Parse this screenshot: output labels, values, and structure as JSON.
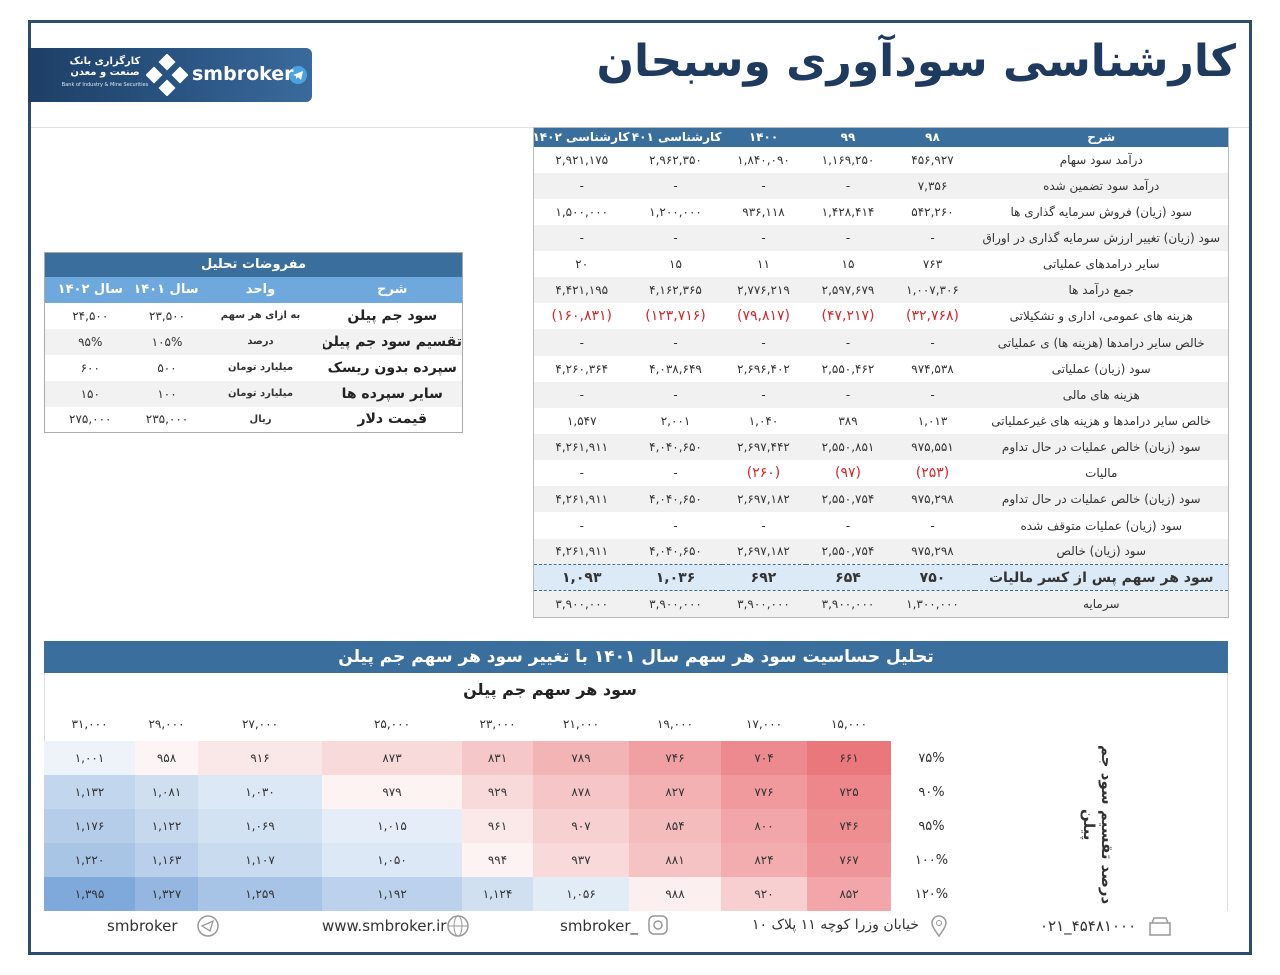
{
  "header": {
    "title": "کارشناسی سودآوری وسبحان",
    "brand": "smbroker",
    "logo_text": "کارگزاری بانک صنعت و معدن",
    "logo_subtext": "Bank of Industry & Mine Securities"
  },
  "income_table": {
    "columns": [
      "شرح",
      "۹۸",
      "۹۹",
      "۱۴۰۰",
      "کارشناسی ۱۴۰۱",
      "کارشناسی ۱۴۰۲"
    ],
    "rows": [
      [
        "درآمد سود سهام",
        "۴۵۶,۹۲۷",
        "۱,۱۶۹,۲۵۰",
        "۱,۸۴۰,۰۹۰",
        "۲,۹۶۲,۳۵۰",
        "۲,۹۲۱,۱۷۵"
      ],
      [
        "درآمد سود تضمین شده",
        "۷,۳۵۶",
        "-",
        "-",
        "-",
        "-"
      ],
      [
        "سود (زیان) فروش سرمایه گذاری ها",
        "۵۴۲,۲۶۰",
        "۱,۴۲۸,۴۱۴",
        "۹۳۶,۱۱۸",
        "۱,۲۰۰,۰۰۰",
        "۱,۵۰۰,۰۰۰"
      ],
      [
        "سود (زیان) تغییر ارزش سرمایه گذاری در اوراق",
        "-",
        "-",
        "-",
        "-",
        "-"
      ],
      [
        "سایر درامدهای عملیاتی",
        "۷۶۳",
        "۱۵",
        "۱۱",
        "۱۵",
        "۲۰"
      ],
      [
        "جمع درآمد ها",
        "۱,۰۰۷,۳۰۶",
        "۲,۵۹۷,۶۷۹",
        "۲,۷۷۶,۲۱۹",
        "۴,۱۶۲,۳۶۵",
        "۴,۴۲۱,۱۹۵"
      ],
      [
        "هزینه های عمومی، اداری و تشکیلاتی",
        "(۳۲,۷۶۸)",
        "(۴۷,۲۱۷)",
        "(۷۹,۸۱۷)",
        "(۱۲۳,۷۱۶)",
        "(۱۶۰,۸۳۱)"
      ],
      [
        "خالص سایر درامدها (هزینه ها) ی عملیاتی",
        "-",
        "-",
        "-",
        "-",
        "-"
      ],
      [
        "سود (زیان) عملیاتی",
        "۹۷۴,۵۳۸",
        "۲,۵۵۰,۴۶۲",
        "۲,۶۹۶,۴۰۲",
        "۴,۰۳۸,۶۴۹",
        "۴,۲۶۰,۳۶۴"
      ],
      [
        "هزینه های مالی",
        "-",
        "-",
        "-",
        "-",
        "-"
      ],
      [
        "خالص سایر درامدها و هزینه های غیرعملیاتی",
        "۱,۰۱۳",
        "۳۸۹",
        "۱,۰۴۰",
        "۲,۰۰۱",
        "۱,۵۴۷"
      ],
      [
        "سود (زیان) خالص عملیات در حال تداوم",
        "۹۷۵,۵۵۱",
        "۲,۵۵۰,۸۵۱",
        "۲,۶۹۷,۴۴۲",
        "۴,۰۴۰,۶۵۰",
        "۴,۲۶۱,۹۱۱"
      ],
      [
        "مالیات",
        "(۲۵۳)",
        "(۹۷)",
        "(۲۶۰)",
        "-",
        "-"
      ],
      [
        "سود (زیان) خالص عملیات در حال تداوم",
        "۹۷۵,۲۹۸",
        "۲,۵۵۰,۷۵۴",
        "۲,۶۹۷,۱۸۲",
        "۴,۰۴۰,۶۵۰",
        "۴,۲۶۱,۹۱۱"
      ],
      [
        "سود (زیان) عملیات متوقف شده",
        "-",
        "-",
        "-",
        "-",
        "-"
      ],
      [
        "سود (زیان) خالص",
        "۹۷۵,۲۹۸",
        "۲,۵۵۰,۷۵۴",
        "۲,۶۹۷,۱۸۲",
        "۴,۰۴۰,۶۵۰",
        "۴,۲۶۱,۹۱۱"
      ],
      [
        "سود هر سهم پس از کسر مالیات",
        "۷۵۰",
        "۶۵۴",
        "۶۹۲",
        "۱,۰۳۶",
        "۱,۰۹۳"
      ],
      [
        "سرمایه",
        "۱,۳۰۰,۰۰۰",
        "۳,۹۰۰,۰۰۰",
        "۳,۹۰۰,۰۰۰",
        "۳,۹۰۰,۰۰۰",
        "۳,۹۰۰,۰۰۰"
      ]
    ]
  },
  "assumptions": {
    "title": "مفروضات تحلیل",
    "columns": [
      "شرح",
      "واحد",
      "سال ۱۴۰۱",
      "سال ۱۴۰۲"
    ],
    "rows": [
      [
        "سود جم پیلن",
        "به ازای هر سهم",
        "۲۳,۵۰۰",
        "۲۴,۵۰۰"
      ],
      [
        "تقسیم سود جم پیلن",
        "درصد",
        "۱۰۵%",
        "۹۵%"
      ],
      [
        "سپرده بدون ریسک",
        "میلیارد تومان",
        "۵۰۰",
        "۶۰۰"
      ],
      [
        "سایر سپرده ها",
        "میلیارد تومان",
        "۱۰۰",
        "۱۵۰"
      ],
      [
        "قیمت دلار",
        "ریال",
        "۲۳۵,۰۰۰",
        "۲۷۵,۰۰۰"
      ]
    ]
  },
  "sensitivity": {
    "title": "تحلیل حساسیت سود هر سهم سال ۱۴۰۱ با تغییر سود هر سهم جم پیلن",
    "subtitle": "سود هر سهم جم پیلن",
    "row_axis_label": "درصد تقسیم سود جم پیلن",
    "columns": [
      "۱۵,۰۰۰",
      "۱۷,۰۰۰",
      "۱۹,۰۰۰",
      "۲۱,۰۰۰",
      "۲۳,۰۰۰",
      "۲۵,۰۰۰",
      "۲۷,۰۰۰",
      "۲۹,۰۰۰",
      "۳۱,۰۰۰"
    ],
    "row_labels": [
      "۷۵%",
      "۹۰%",
      "۹۵%",
      "۱۰۰%",
      "۱۲۰%"
    ],
    "rows": [
      [
        "۶۶۱",
        "۷۰۴",
        "۷۴۶",
        "۷۸۹",
        "۸۳۱",
        "۸۷۳",
        "۹۱۶",
        "۹۵۸",
        "۱,۰۰۱"
      ],
      [
        "۷۲۵",
        "۷۷۶",
        "۸۲۷",
        "۸۷۸",
        "۹۲۹",
        "۹۷۹",
        "۱,۰۳۰",
        "۱,۰۸۱",
        "۱,۱۳۲"
      ],
      [
        "۷۴۶",
        "۸۰۰",
        "۸۵۴",
        "۹۰۷",
        "۹۶۱",
        "۱,۰۱۵",
        "۱,۰۶۹",
        "۱,۱۲۲",
        "۱,۱۷۶"
      ],
      [
        "۷۶۷",
        "۸۲۴",
        "۸۸۱",
        "۹۳۷",
        "۹۹۴",
        "۱,۰۵۰",
        "۱,۱۰۷",
        "۱,۱۶۳",
        "۱,۲۲۰"
      ],
      [
        "۸۵۲",
        "۹۲۰",
        "۹۸۸",
        "۱,۰۵۶",
        "۱,۱۲۴",
        "۱,۱۹۲",
        "۱,۲۵۹",
        "۱,۳۲۷",
        "۱,۳۹۵"
      ]
    ]
  },
  "footer": {
    "telegram": "smbroker",
    "website": "www.smbroker.ir",
    "instagram": "smbroker_",
    "address": "خیابان وزرا کوچه ۱۱ پلاک ۱۰",
    "phone": "۰۲۱_۴۵۴۸۱۰۰۰"
  }
}
